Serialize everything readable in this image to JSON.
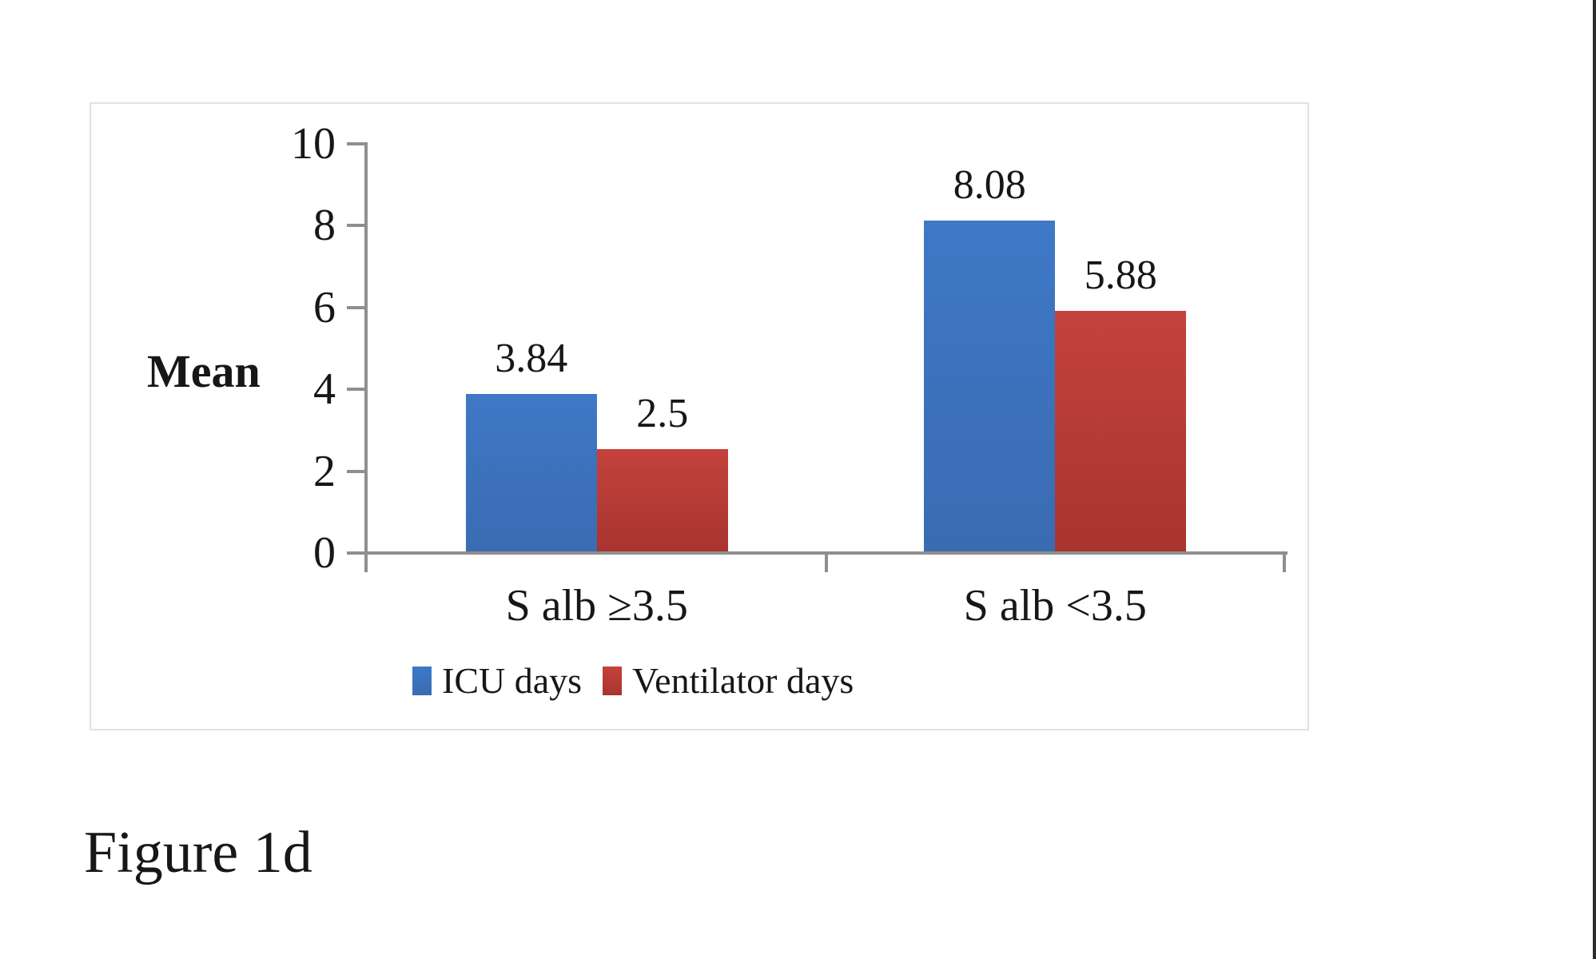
{
  "figure": {
    "caption": "Figure 1d"
  },
  "chart_data": {
    "type": "bar",
    "title": "",
    "categories": [
      "S alb ≥3.5",
      "S alb <3.5"
    ],
    "series": [
      {
        "name": "ICU days",
        "values": [
          3.84,
          8.08
        ],
        "labels": [
          "3.84",
          "8.08"
        ],
        "color_top": "#3e78c6",
        "color_bottom": "#3a6cb2"
      },
      {
        "name": "Ventilator days",
        "values": [
          2.5,
          5.88
        ],
        "labels": [
          "2.5",
          "5.88"
        ],
        "color_top": "#c4423c",
        "color_bottom": "#a83430"
      }
    ],
    "ylabel": "Mean",
    "xlabel": "",
    "ylim": [
      0,
      10
    ],
    "yticks": [
      0,
      2,
      4,
      6,
      8,
      10
    ],
    "grid": false,
    "legend_position": "bottom",
    "axis_color": "#8f8f8f",
    "text_color": "#171717",
    "frame_border_color": "#dbe3ea",
    "background_color": "#ffffff"
  }
}
